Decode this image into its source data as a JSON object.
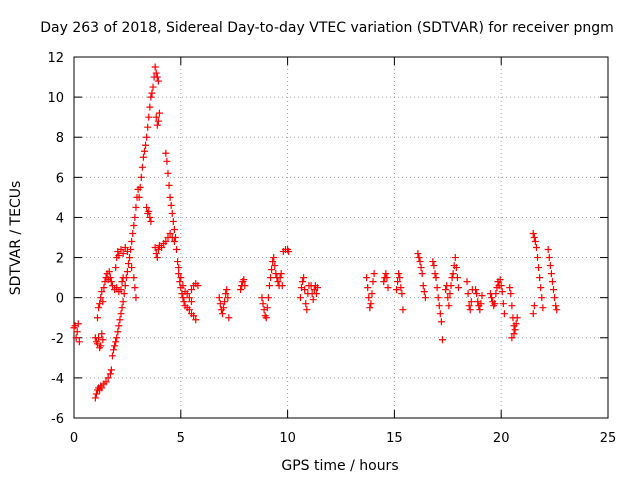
{
  "chart_data": {
    "type": "scatter",
    "title": "Day 263 of 2018, Sidereal Day-to-day VTEC variation (SDTVAR) for receiver pngm",
    "xlabel": "GPS time / hours",
    "ylabel": "SDTVAR / TECUs",
    "xlim": [
      0,
      25
    ],
    "ylim": [
      -6,
      12
    ],
    "xticks": [
      0,
      5,
      10,
      15,
      20,
      25
    ],
    "yticks": [
      -6,
      -4,
      -2,
      0,
      2,
      4,
      6,
      8,
      10,
      12
    ],
    "grid": true,
    "marker": "+",
    "color": "#ff0000",
    "series": [
      {
        "name": "SDTVAR",
        "points": [
          [
            0.0,
            -1.5
          ],
          [
            0.05,
            -1.4
          ],
          [
            0.1,
            -2.0
          ],
          [
            0.15,
            -1.7
          ],
          [
            0.2,
            -1.3
          ],
          [
            0.25,
            -2.2
          ],
          [
            1.0,
            -2.0
          ],
          [
            1.05,
            -2.2
          ],
          [
            1.1,
            -2.3
          ],
          [
            1.15,
            -2.0
          ],
          [
            1.2,
            -2.5
          ],
          [
            1.25,
            -2.4
          ],
          [
            1.3,
            -1.8
          ],
          [
            1.35,
            -2.1
          ],
          [
            1.0,
            -5.0
          ],
          [
            1.05,
            -4.8
          ],
          [
            1.1,
            -4.6
          ],
          [
            1.15,
            -4.5
          ],
          [
            1.2,
            -4.6
          ],
          [
            1.25,
            -4.4
          ],
          [
            1.3,
            -4.5
          ],
          [
            1.4,
            -4.3
          ],
          [
            1.5,
            -4.2
          ],
          [
            1.6,
            -4.0
          ],
          [
            1.7,
            -3.8
          ],
          [
            1.75,
            -3.6
          ],
          [
            1.1,
            -1.0
          ],
          [
            1.15,
            -0.5
          ],
          [
            1.2,
            -0.3
          ],
          [
            1.25,
            0.0
          ],
          [
            1.3,
            0.3
          ],
          [
            1.35,
            -0.2
          ],
          [
            1.4,
            0.5
          ],
          [
            1.45,
            0.8
          ],
          [
            1.5,
            1.0
          ],
          [
            1.55,
            1.2
          ],
          [
            1.6,
            0.9
          ],
          [
            1.65,
            1.3
          ],
          [
            1.7,
            1.0
          ],
          [
            1.75,
            0.8
          ],
          [
            1.8,
            0.6
          ],
          [
            1.9,
            0.4
          ],
          [
            2.0,
            0.5
          ],
          [
            2.1,
            0.3
          ],
          [
            2.2,
            0.4
          ],
          [
            2.25,
            0.8
          ],
          [
            2.3,
            1.0
          ],
          [
            1.8,
            -2.9
          ],
          [
            1.85,
            -2.6
          ],
          [
            1.9,
            -2.4
          ],
          [
            1.95,
            -2.2
          ],
          [
            2.0,
            -2.0
          ],
          [
            2.05,
            -1.7
          ],
          [
            2.1,
            -1.4
          ],
          [
            2.15,
            -1.1
          ],
          [
            2.2,
            -0.8
          ],
          [
            2.25,
            -0.5
          ],
          [
            2.3,
            -0.2
          ],
          [
            2.35,
            0.2
          ],
          [
            2.4,
            0.6
          ],
          [
            2.45,
            1.0
          ],
          [
            2.5,
            1.3
          ],
          [
            2.55,
            1.7
          ],
          [
            2.6,
            2.0
          ],
          [
            2.65,
            2.4
          ],
          [
            2.7,
            2.8
          ],
          [
            2.75,
            3.2
          ],
          [
            2.8,
            3.6
          ],
          [
            2.85,
            4.0
          ],
          [
            2.9,
            4.5
          ],
          [
            2.95,
            5.0
          ],
          [
            3.0,
            5.4
          ],
          [
            1.95,
            1.5
          ],
          [
            2.0,
            2.0
          ],
          [
            2.05,
            2.3
          ],
          [
            2.1,
            2.1
          ],
          [
            2.2,
            2.4
          ],
          [
            2.3,
            2.2
          ],
          [
            2.4,
            2.5
          ],
          [
            2.5,
            2.3
          ],
          [
            2.6,
            2.0
          ],
          [
            2.7,
            1.5
          ],
          [
            2.8,
            1.0
          ],
          [
            2.85,
            0.5
          ],
          [
            2.9,
            0.0
          ],
          [
            3.05,
            5.0
          ],
          [
            3.1,
            5.5
          ],
          [
            3.15,
            6.0
          ],
          [
            3.2,
            6.5
          ],
          [
            3.25,
            7.0
          ],
          [
            3.3,
            7.3
          ],
          [
            3.35,
            7.6
          ],
          [
            3.4,
            4.5
          ],
          [
            3.45,
            4.2
          ],
          [
            3.5,
            4.3
          ],
          [
            3.55,
            4.0
          ],
          [
            3.6,
            3.8
          ],
          [
            3.4,
            8.0
          ],
          [
            3.45,
            8.5
          ],
          [
            3.5,
            9.0
          ],
          [
            3.55,
            9.5
          ],
          [
            3.6,
            10.0
          ],
          [
            3.65,
            10.2
          ],
          [
            3.7,
            10.5
          ],
          [
            3.75,
            11.0
          ],
          [
            3.8,
            11.5
          ],
          [
            3.85,
            11.2
          ],
          [
            3.9,
            11.0
          ],
          [
            3.95,
            10.8
          ],
          [
            3.85,
            9.0
          ],
          [
            3.9,
            8.6
          ],
          [
            3.95,
            8.8
          ],
          [
            4.0,
            9.2
          ],
          [
            3.8,
            2.5
          ],
          [
            3.85,
            2.2
          ],
          [
            3.9,
            2.0
          ],
          [
            3.95,
            2.4
          ],
          [
            4.0,
            2.6
          ],
          [
            4.1,
            2.5
          ],
          [
            4.2,
            2.7
          ],
          [
            4.3,
            2.8
          ],
          [
            4.4,
            3.0
          ],
          [
            4.5,
            3.2
          ],
          [
            4.6,
            3.0
          ],
          [
            4.7,
            2.8
          ],
          [
            4.3,
            7.2
          ],
          [
            4.35,
            6.8
          ],
          [
            4.4,
            6.2
          ],
          [
            4.45,
            5.6
          ],
          [
            4.5,
            5.0
          ],
          [
            4.55,
            4.6
          ],
          [
            4.6,
            4.2
          ],
          [
            4.65,
            3.8
          ],
          [
            4.7,
            3.4
          ],
          [
            4.75,
            3.0
          ],
          [
            4.8,
            2.4
          ],
          [
            4.85,
            1.8
          ],
          [
            4.9,
            1.2
          ],
          [
            4.95,
            0.8
          ],
          [
            5.0,
            0.5
          ],
          [
            5.05,
            0.2
          ],
          [
            5.1,
            0.0
          ],
          [
            5.15,
            -0.2
          ],
          [
            5.2,
            -0.4
          ],
          [
            5.3,
            -0.5
          ],
          [
            5.4,
            -0.6
          ],
          [
            5.5,
            -0.8
          ],
          [
            5.6,
            -0.9
          ],
          [
            5.7,
            -1.1
          ],
          [
            4.9,
            1.5
          ],
          [
            5.0,
            1.0
          ],
          [
            5.1,
            0.6
          ],
          [
            5.2,
            0.3
          ],
          [
            5.3,
            0.2
          ],
          [
            5.4,
            0.0
          ],
          [
            5.5,
            -0.2
          ],
          [
            5.5,
            0.4
          ],
          [
            5.6,
            0.6
          ],
          [
            5.7,
            0.7
          ],
          [
            5.8,
            0.6
          ],
          [
            6.8,
            0.0
          ],
          [
            6.85,
            -0.3
          ],
          [
            6.9,
            -0.6
          ],
          [
            6.95,
            -0.8
          ],
          [
            7.0,
            -0.5
          ],
          [
            7.05,
            -0.2
          ],
          [
            7.1,
            0.2
          ],
          [
            7.15,
            0.4
          ],
          [
            7.2,
            0.0
          ],
          [
            7.25,
            -1.0
          ],
          [
            7.8,
            0.4
          ],
          [
            7.85,
            0.6
          ],
          [
            7.9,
            0.8
          ],
          [
            7.95,
            0.9
          ],
          [
            8.0,
            0.6
          ],
          [
            8.8,
            0.0
          ],
          [
            8.85,
            -0.3
          ],
          [
            8.9,
            -0.6
          ],
          [
            8.95,
            -0.9
          ],
          [
            9.0,
            -1.0
          ],
          [
            9.05,
            -0.5
          ],
          [
            9.1,
            0.0
          ],
          [
            9.15,
            0.6
          ],
          [
            9.2,
            1.0
          ],
          [
            9.25,
            1.4
          ],
          [
            9.3,
            1.8
          ],
          [
            9.35,
            2.0
          ],
          [
            9.4,
            1.6
          ],
          [
            9.45,
            1.2
          ],
          [
            9.5,
            1.0
          ],
          [
            9.55,
            0.8
          ],
          [
            9.6,
            0.6
          ],
          [
            9.65,
            1.0
          ],
          [
            9.7,
            1.2
          ],
          [
            9.75,
            0.6
          ],
          [
            9.8,
            2.3
          ],
          [
            9.9,
            2.4
          ],
          [
            10.0,
            2.4
          ],
          [
            10.05,
            2.3
          ],
          [
            10.6,
            0.0
          ],
          [
            10.65,
            0.5
          ],
          [
            10.7,
            0.8
          ],
          [
            10.75,
            1.0
          ],
          [
            10.8,
            0.4
          ],
          [
            10.85,
            -0.3
          ],
          [
            10.9,
            -0.6
          ],
          [
            10.95,
            0.2
          ],
          [
            11.0,
            0.6
          ],
          [
            11.1,
            0.6
          ],
          [
            11.15,
            0.2
          ],
          [
            11.2,
            -0.1
          ],
          [
            11.25,
            0.4
          ],
          [
            11.3,
            0.6
          ],
          [
            11.35,
            0.2
          ],
          [
            11.4,
            0.5
          ],
          [
            13.7,
            1.0
          ],
          [
            13.75,
            0.5
          ],
          [
            13.8,
            0.0
          ],
          [
            13.85,
            -0.5
          ],
          [
            13.9,
            -0.3
          ],
          [
            13.95,
            0.2
          ],
          [
            14.0,
            0.8
          ],
          [
            14.05,
            1.2
          ],
          [
            14.5,
            0.8
          ],
          [
            14.55,
            1.0
          ],
          [
            14.6,
            1.2
          ],
          [
            14.65,
            1.0
          ],
          [
            14.7,
            0.5
          ],
          [
            15.1,
            0.4
          ],
          [
            15.15,
            0.8
          ],
          [
            15.2,
            1.2
          ],
          [
            15.25,
            1.0
          ],
          [
            15.3,
            0.5
          ],
          [
            15.35,
            0.2
          ],
          [
            15.4,
            -0.6
          ],
          [
            16.1,
            2.2
          ],
          [
            16.15,
            2.0
          ],
          [
            16.2,
            1.8
          ],
          [
            16.25,
            1.5
          ],
          [
            16.3,
            1.2
          ],
          [
            16.35,
            0.6
          ],
          [
            16.4,
            0.3
          ],
          [
            16.45,
            0.0
          ],
          [
            16.8,
            1.8
          ],
          [
            16.85,
            1.6
          ],
          [
            16.9,
            1.2
          ],
          [
            16.95,
            1.0
          ],
          [
            17.0,
            0.5
          ],
          [
            17.05,
            0.0
          ],
          [
            17.1,
            -0.4
          ],
          [
            17.15,
            -0.8
          ],
          [
            17.2,
            -1.2
          ],
          [
            17.25,
            -2.1
          ],
          [
            17.4,
            0.4
          ],
          [
            17.45,
            0.6
          ],
          [
            17.5,
            0.0
          ],
          [
            17.55,
            -0.4
          ],
          [
            17.6,
            0.2
          ],
          [
            17.65,
            0.6
          ],
          [
            17.7,
            1.0
          ],
          [
            17.75,
            1.2
          ],
          [
            17.8,
            1.6
          ],
          [
            17.85,
            2.0
          ],
          [
            17.9,
            1.5
          ],
          [
            17.95,
            1.0
          ],
          [
            18.0,
            0.5
          ],
          [
            18.4,
            0.8
          ],
          [
            18.45,
            0.2
          ],
          [
            18.5,
            -0.4
          ],
          [
            18.55,
            -0.6
          ],
          [
            18.6,
            -0.2
          ],
          [
            18.65,
            0.4
          ],
          [
            18.8,
            0.4
          ],
          [
            18.85,
            0.2
          ],
          [
            18.9,
            -0.2
          ],
          [
            18.95,
            -0.4
          ],
          [
            19.0,
            -0.6
          ],
          [
            19.05,
            -0.3
          ],
          [
            19.1,
            0.1
          ],
          [
            19.5,
            0.2
          ],
          [
            19.55,
            0.0
          ],
          [
            19.6,
            -0.2
          ],
          [
            19.65,
            -0.4
          ],
          [
            19.7,
            -0.3
          ],
          [
            19.75,
            0.2
          ],
          [
            19.8,
            0.5
          ],
          [
            19.85,
            0.8
          ],
          [
            19.9,
            0.6
          ],
          [
            19.95,
            0.9
          ],
          [
            20.0,
            0.6
          ],
          [
            20.05,
            0.3
          ],
          [
            20.1,
            -0.3
          ],
          [
            20.15,
            -0.8
          ],
          [
            20.4,
            0.5
          ],
          [
            20.45,
            0.2
          ],
          [
            20.5,
            -0.4
          ],
          [
            20.55,
            -1.0
          ],
          [
            20.6,
            -1.4
          ],
          [
            20.65,
            -1.6
          ],
          [
            20.7,
            -1.3
          ],
          [
            20.75,
            -1.0
          ],
          [
            20.5,
            -2.0
          ],
          [
            20.6,
            -1.8
          ],
          [
            21.5,
            3.2
          ],
          [
            21.55,
            3.0
          ],
          [
            21.6,
            2.8
          ],
          [
            21.65,
            2.5
          ],
          [
            21.7,
            2.0
          ],
          [
            21.75,
            1.5
          ],
          [
            21.8,
            1.0
          ],
          [
            21.85,
            0.5
          ],
          [
            21.9,
            0.0
          ],
          [
            21.95,
            -0.5
          ],
          [
            21.5,
            -0.8
          ],
          [
            21.55,
            -0.4
          ],
          [
            22.2,
            2.4
          ],
          [
            22.25,
            2.0
          ],
          [
            22.3,
            1.6
          ],
          [
            22.35,
            1.2
          ],
          [
            22.4,
            0.8
          ],
          [
            22.45,
            0.4
          ],
          [
            22.5,
            0.0
          ],
          [
            22.55,
            -0.4
          ],
          [
            22.6,
            -0.6
          ]
        ]
      }
    ]
  }
}
